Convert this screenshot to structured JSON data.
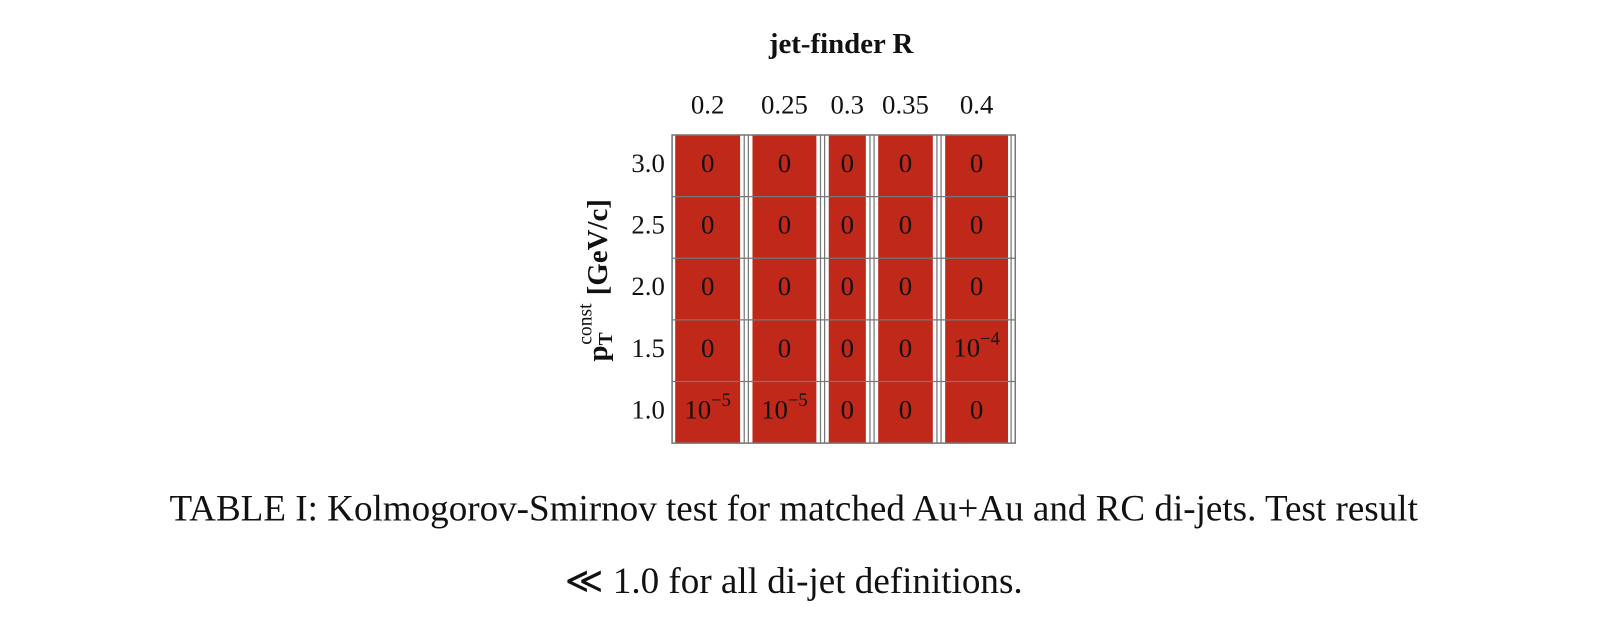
{
  "table": {
    "title": "jet-finder R",
    "columns": [
      "0.2",
      "0.25",
      "0.3",
      "0.35",
      "0.4"
    ],
    "row_axis_label": {
      "main": "p",
      "sub": "T",
      "sup": "const",
      "rest": "[GeV/c]"
    },
    "rows": [
      "3.0",
      "2.5",
      "2.0",
      "1.5",
      "1.0"
    ],
    "cells": [
      [
        "0",
        "0",
        "0",
        "0",
        "0"
      ],
      [
        "0",
        "0",
        "0",
        "0",
        "0"
      ],
      [
        "0",
        "0",
        "0",
        "0",
        "0"
      ],
      [
        "0",
        "0",
        "0",
        "0",
        {
          "base": "10",
          "sup": "−4"
        }
      ],
      [
        {
          "base": "10",
          "sup": "−5"
        },
        {
          "base": "10",
          "sup": "−5"
        },
        "0",
        "0",
        "0"
      ]
    ]
  },
  "caption": {
    "lines": [
      "TABLE I:  Kolmogorov-Smirnov test for matched Au+Au and RC di-jets. Test result",
      "≪ 1.0 for all di-jet definitions."
    ]
  }
}
